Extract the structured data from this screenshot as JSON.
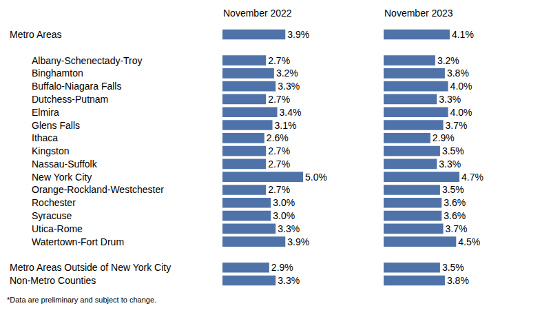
{
  "chart_data": {
    "type": "bar",
    "orientation": "horizontal",
    "data_labels": true,
    "tick_labels": "y",
    "grid": false,
    "xlim": [
      0,
      5
    ],
    "categories": [
      "Metro Areas",
      null,
      "Albany-Schenectady-Troy",
      "Binghamton",
      "Buffalo-Niagara Falls",
      "Dutchess-Putnam",
      "Elmira",
      "Glens Falls",
      "Ithaca",
      "Kingston",
      "Nassau-Suffolk",
      "New York City",
      "Orange-Rockland-Westchester",
      "Rochester",
      "Syracuse",
      "Utica-Rome",
      "Watertown-Fort Drum",
      null,
      "Metro Areas Outside of New York City",
      "Non-Metro Counties"
    ],
    "series": [
      {
        "name": "November 2022",
        "color": "#4f73a8",
        "values": [
          3.9,
          null,
          2.7,
          3.2,
          3.3,
          2.7,
          3.4,
          3.1,
          2.6,
          2.7,
          2.7,
          5.0,
          2.7,
          3.0,
          3.0,
          3.3,
          3.9,
          null,
          2.9,
          3.3
        ],
        "value_labels": [
          "3.9%",
          null,
          "2.7%",
          "3.2%",
          "3.3%",
          "2.7%",
          "3.4%",
          "3.1%",
          "2.6%",
          "2.7%",
          "2.7%",
          "5.0%",
          "2.7%",
          "3.0%",
          "3.0%",
          "3.3%",
          "3.9%",
          null,
          "2.9%",
          "3.3%"
        ]
      },
      {
        "name": "November 2023",
        "color": "#4f73a8",
        "values": [
          4.1,
          null,
          3.2,
          3.8,
          4.0,
          3.3,
          4.0,
          3.7,
          2.9,
          3.5,
          3.3,
          4.7,
          3.5,
          3.6,
          3.6,
          3.7,
          4.5,
          null,
          3.5,
          3.8
        ],
        "value_labels": [
          "4.1%",
          null,
          "3.2%",
          "3.8%",
          "4.0%",
          "3.3%",
          "4.0%",
          "3.7%",
          "2.9%",
          "3.5%",
          "3.3%",
          "4.7%",
          "3.5%",
          "3.6%",
          "3.6%",
          "3.7%",
          "4.5%",
          null,
          "3.5%",
          "3.8%"
        ]
      }
    ],
    "annotations": [
      "*Data are preliminary and subject to change."
    ]
  }
}
